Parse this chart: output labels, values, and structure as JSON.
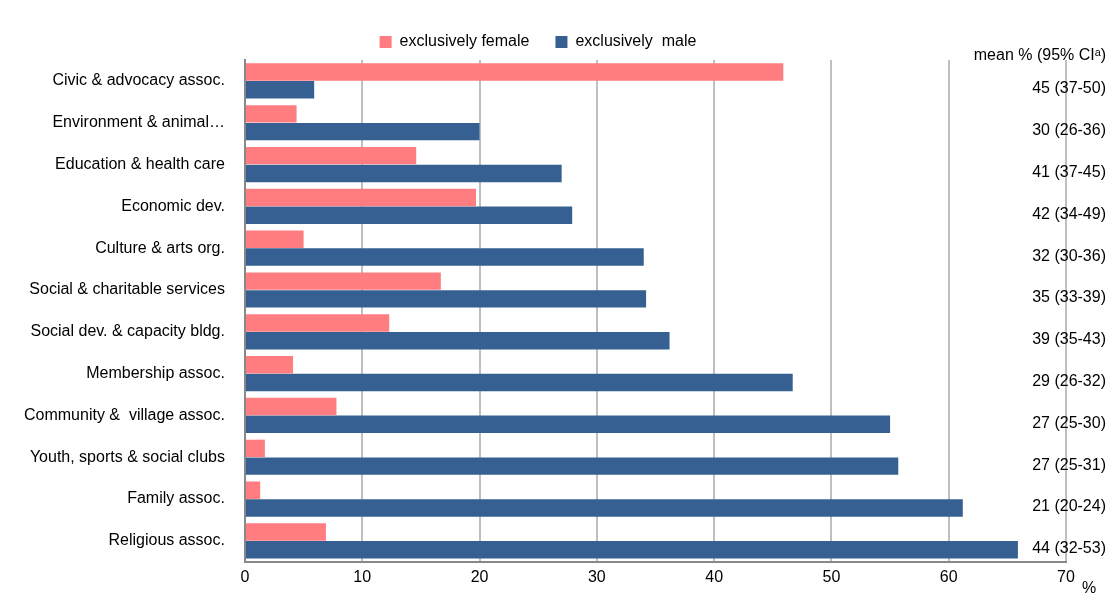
{
  "chart_data": {
    "type": "bar",
    "orientation": "horizontal",
    "xlabel": "%",
    "categories": [
      "Civic & advocacy assoc.",
      "Environment & animal…",
      "Education & health care",
      "Economic dev.",
      "Culture & arts org.",
      "Social & charitable services",
      "Social dev. & capacity bldg.",
      "Membership assoc.",
      "Community &  village assoc.",
      "Youth, sports & social clubs",
      "Family assoc.",
      "Religious assoc."
    ],
    "series": [
      {
        "name": "exclusively female",
        "color": "#ff7c80",
        "values": [
          45.9,
          4.4,
          14.6,
          19.7,
          5.0,
          16.7,
          12.3,
          4.1,
          7.8,
          1.7,
          1.3,
          6.9
        ]
      },
      {
        "name": "exclusively  male",
        "color": "#366092",
        "values": [
          5.9,
          20.0,
          27.0,
          27.9,
          34.0,
          34.2,
          36.2,
          46.7,
          55.0,
          55.7,
          61.2,
          65.9
        ]
      }
    ],
    "xlim": [
      0,
      70
    ],
    "xticks": [
      0,
      10,
      20,
      30,
      40,
      50,
      60,
      70
    ],
    "grid": "x",
    "legend": "top",
    "annotations": [
      "mean % (95% CIᵃ)",
      "45 (37-50)",
      "30 (26-36)",
      "41 (37-45)",
      "42 (34-49)",
      "32 (30-36)",
      "35 (33-39)",
      "39 (35-43)",
      "29 (26-32)",
      "27 (25-30)",
      "27 (25-31)",
      "21 (20-24)",
      "44 (32-53)"
    ]
  }
}
